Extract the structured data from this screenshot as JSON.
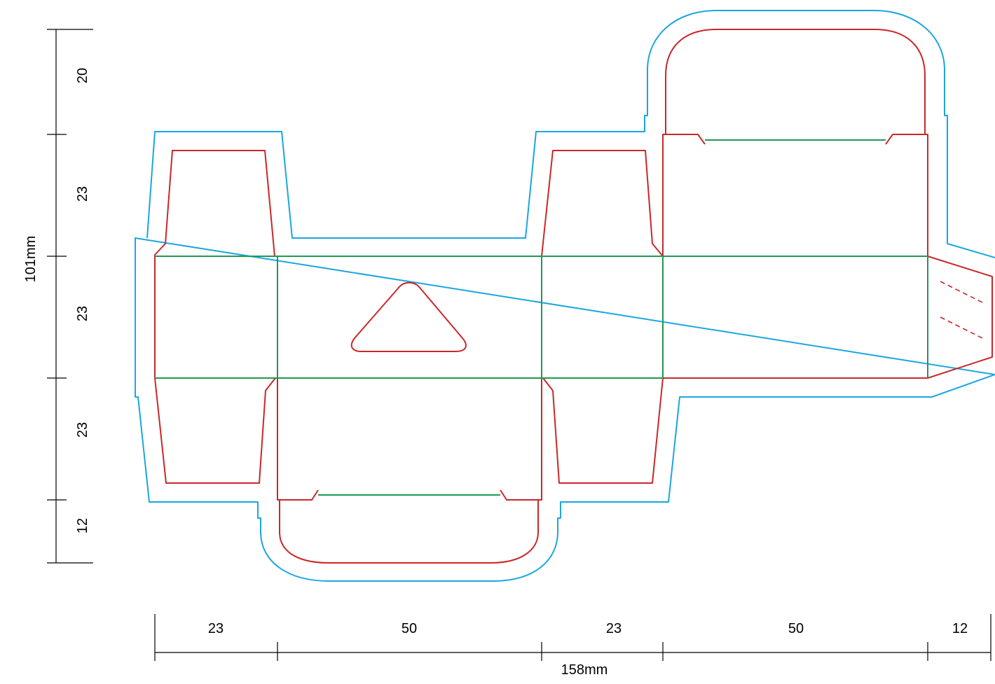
{
  "diagram": {
    "type": "packaging-dieline",
    "colors": {
      "bleed": "#1aa6e0",
      "cut": "#c8282a",
      "fold": "#1e9a52",
      "dimension": "#000000"
    },
    "vertical_dimensions": {
      "segments": [
        "20",
        "23",
        "23",
        "23",
        "12"
      ],
      "total": "101mm"
    },
    "horizontal_dimensions": {
      "segments": [
        "23",
        "50",
        "23",
        "50",
        "12"
      ],
      "total": "158mm"
    }
  }
}
